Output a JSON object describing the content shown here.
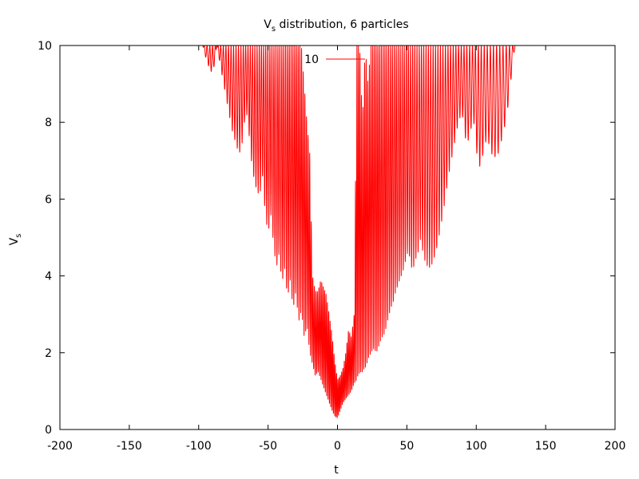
{
  "chart_data": {
    "type": "line",
    "title": {
      "prefix": "V",
      "sub": "s",
      "suffix": " distribution, 6 particles"
    },
    "xlabel": "t",
    "ylabel": {
      "main": "V",
      "sub": "s"
    },
    "xlim": [
      -200,
      200
    ],
    "ylim": [
      0,
      10
    ],
    "xticks": [
      -200,
      -150,
      -100,
      -50,
      0,
      50,
      100,
      150,
      200
    ],
    "xtick_labels": [
      "-200",
      "-150",
      "-100",
      "-50",
      "0",
      "50",
      "100",
      "150",
      "200"
    ],
    "yticks": [
      0,
      2,
      4,
      6,
      8,
      10
    ],
    "ytick_labels": [
      "0",
      "2",
      "4",
      "6",
      "8",
      "10"
    ],
    "grid": false,
    "legend_position": "top-center",
    "series": [
      {
        "name": "10",
        "color": "#ff0000",
        "envelope": {
          "t": [
            -97,
            -96,
            -94,
            -92,
            -90,
            -88,
            -87,
            -84,
            -80,
            -76,
            -72,
            -70,
            -68,
            -66,
            -64,
            -62,
            -60,
            -58,
            -56,
            -54,
            -52,
            -50,
            -48,
            -46,
            -44,
            -42,
            -40,
            -38,
            -36,
            -34,
            -32,
            -30,
            -28,
            -26,
            -24,
            -22,
            -20,
            -18,
            -16,
            -14,
            -12,
            -10,
            -8,
            -6,
            -4,
            -2,
            0,
            2,
            4,
            6,
            8,
            10,
            12,
            14,
            16,
            18,
            20,
            22,
            24,
            26,
            28,
            30,
            32,
            34,
            36,
            38,
            40,
            42,
            44,
            46,
            48,
            50,
            52,
            54,
            56,
            58,
            60,
            62,
            64,
            66,
            68,
            70,
            72,
            74,
            76,
            78,
            80,
            82,
            84,
            86,
            88,
            90,
            92,
            94,
            96,
            98,
            100,
            102,
            104,
            106,
            108,
            110,
            112,
            114,
            116,
            118,
            120,
            122,
            124,
            126,
            128
          ],
          "min": [
            10,
            9.8,
            9.6,
            9.35,
            9.3,
            9.6,
            10,
            9.4,
            8.6,
            7.8,
            7.3,
            7.2,
            7.6,
            8.4,
            7.8,
            7.0,
            6.5,
            6.2,
            6.1,
            6.6,
            5.6,
            5.1,
            5.6,
            4.8,
            4.2,
            4.6,
            3.8,
            4.2,
            3.4,
            3.9,
            3.1,
            3.6,
            2.8,
            3.1,
            2.4,
            2.7,
            2.0,
            1.7,
            1.4,
            1.5,
            1.3,
            1.1,
            0.9,
            0.7,
            0.5,
            0.35,
            0.3,
            0.5,
            0.7,
            0.8,
            0.9,
            1.0,
            1.2,
            1.3,
            1.5,
            1.5,
            1.6,
            1.8,
            2.0,
            2.1,
            2.0,
            2.2,
            2.4,
            2.5,
            2.8,
            3.1,
            3.3,
            3.6,
            3.8,
            4.0,
            4.2,
            4.6,
            4.5,
            4.1,
            4.4,
            4.6,
            5.0,
            4.5,
            4.3,
            4.2,
            4.3,
            4.5,
            4.8,
            5.2,
            5.6,
            6.1,
            6.6,
            7.0,
            7.4,
            7.8,
            8.1,
            8.2,
            7.6,
            7.5,
            7.8,
            8.1,
            7.3,
            6.8,
            7.0,
            7.4,
            7.6,
            7.3,
            7.1,
            7.1,
            7.2,
            7.5,
            7.8,
            8.2,
            8.7,
            9.5,
            10
          ],
          "max": [
            10,
            10,
            10,
            10,
            10,
            10,
            10,
            10,
            10,
            10,
            10,
            10,
            10,
            10,
            10,
            10,
            10,
            10,
            10,
            10,
            10,
            10,
            10,
            10,
            10,
            10,
            10,
            10,
            10,
            10,
            10,
            10,
            10,
            10,
            9.0,
            8.0,
            7.2,
            4.0,
            3.6,
            3.6,
            3.9,
            3.7,
            3.5,
            3.0,
            2.5,
            1.8,
            1.3,
            1.4,
            1.6,
            2.0,
            2.6,
            2.4,
            3.0,
            10,
            10,
            8.0,
            10,
            9.0,
            10,
            10,
            10,
            10,
            10,
            10,
            10,
            10,
            10,
            10,
            10,
            10,
            10,
            10,
            10,
            10,
            10,
            10,
            10,
            10,
            10,
            10,
            10,
            10,
            10,
            10,
            10,
            10,
            10,
            10,
            10,
            10,
            10,
            10,
            10,
            10,
            10,
            10,
            10,
            10,
            10,
            10,
            10,
            10,
            10,
            10,
            10,
            10,
            10,
            10,
            10,
            10,
            10
          ]
        }
      }
    ]
  }
}
